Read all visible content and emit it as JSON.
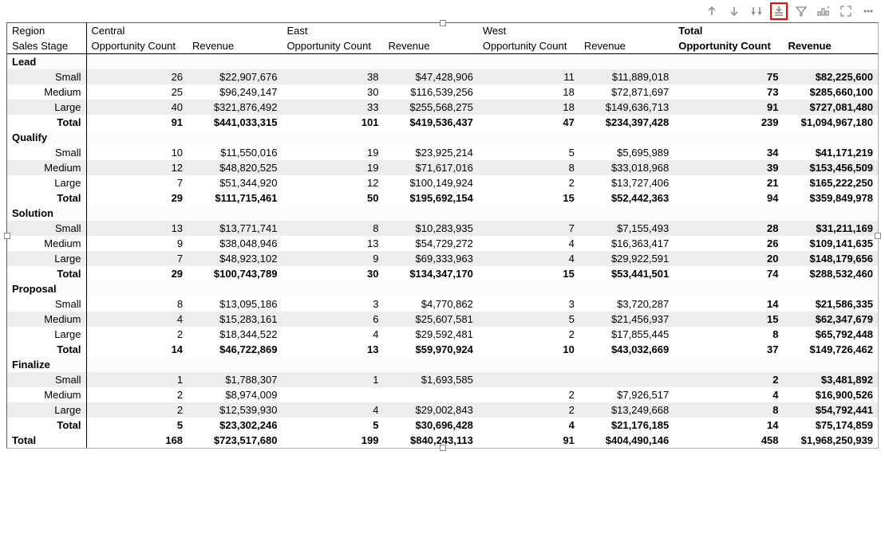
{
  "toolbar": {
    "icons": [
      "arrow-up",
      "arrow-down",
      "drill-toggle",
      "drill-down-level",
      "filter",
      "spotlight",
      "focus-mode",
      "more"
    ]
  },
  "matrix": {
    "row_field1": "Region",
    "row_field2": "Sales Stage",
    "col_groups": [
      "Central",
      "East",
      "West",
      "Total"
    ],
    "measures": [
      "Opportunity Count",
      "Revenue"
    ],
    "stages": [
      {
        "name": "Lead",
        "rows": [
          {
            "label": "Small",
            "zebra": true,
            "Central": {
              "opp": "26",
              "rev": "$22,907,676"
            },
            "East": {
              "opp": "38",
              "rev": "$47,428,906"
            },
            "West": {
              "opp": "11",
              "rev": "$11,889,018"
            },
            "Total": {
              "opp": "75",
              "rev": "$82,225,600"
            }
          },
          {
            "label": "Medium",
            "zebra": false,
            "Central": {
              "opp": "25",
              "rev": "$96,249,147"
            },
            "East": {
              "opp": "30",
              "rev": "$116,539,256"
            },
            "West": {
              "opp": "18",
              "rev": "$72,871,697"
            },
            "Total": {
              "opp": "73",
              "rev": "$285,660,100"
            }
          },
          {
            "label": "Large",
            "zebra": true,
            "Central": {
              "opp": "40",
              "rev": "$321,876,492"
            },
            "East": {
              "opp": "33",
              "rev": "$255,568,275"
            },
            "West": {
              "opp": "18",
              "rev": "$149,636,713"
            },
            "Total": {
              "opp": "91",
              "rev": "$727,081,480"
            }
          }
        ],
        "subtotal": {
          "Central": {
            "opp": "91",
            "rev": "$441,033,315"
          },
          "East": {
            "opp": "101",
            "rev": "$419,536,437"
          },
          "West": {
            "opp": "47",
            "rev": "$234,397,428"
          },
          "Total": {
            "opp": "239",
            "rev": "$1,094,967,180"
          }
        }
      },
      {
        "name": "Qualify",
        "rows": [
          {
            "label": "Small",
            "zebra": false,
            "Central": {
              "opp": "10",
              "rev": "$11,550,016"
            },
            "East": {
              "opp": "19",
              "rev": "$23,925,214"
            },
            "West": {
              "opp": "5",
              "rev": "$5,695,989"
            },
            "Total": {
              "opp": "34",
              "rev": "$41,171,219"
            }
          },
          {
            "label": "Medium",
            "zebra": true,
            "Central": {
              "opp": "12",
              "rev": "$48,820,525"
            },
            "East": {
              "opp": "19",
              "rev": "$71,617,016"
            },
            "West": {
              "opp": "8",
              "rev": "$33,018,968"
            },
            "Total": {
              "opp": "39",
              "rev": "$153,456,509"
            }
          },
          {
            "label": "Large",
            "zebra": false,
            "Central": {
              "opp": "7",
              "rev": "$51,344,920"
            },
            "East": {
              "opp": "12",
              "rev": "$100,149,924"
            },
            "West": {
              "opp": "2",
              "rev": "$13,727,406"
            },
            "Total": {
              "opp": "21",
              "rev": "$165,222,250"
            }
          }
        ],
        "subtotal": {
          "Central": {
            "opp": "29",
            "rev": "$111,715,461"
          },
          "East": {
            "opp": "50",
            "rev": "$195,692,154"
          },
          "West": {
            "opp": "15",
            "rev": "$52,442,363"
          },
          "Total": {
            "opp": "94",
            "rev": "$359,849,978"
          }
        }
      },
      {
        "name": "Solution",
        "rows": [
          {
            "label": "Small",
            "zebra": true,
            "Central": {
              "opp": "13",
              "rev": "$13,771,741"
            },
            "East": {
              "opp": "8",
              "rev": "$10,283,935"
            },
            "West": {
              "opp": "7",
              "rev": "$7,155,493"
            },
            "Total": {
              "opp": "28",
              "rev": "$31,211,169"
            }
          },
          {
            "label": "Medium",
            "zebra": false,
            "Central": {
              "opp": "9",
              "rev": "$38,048,946"
            },
            "East": {
              "opp": "13",
              "rev": "$54,729,272"
            },
            "West": {
              "opp": "4",
              "rev": "$16,363,417"
            },
            "Total": {
              "opp": "26",
              "rev": "$109,141,635"
            }
          },
          {
            "label": "Large",
            "zebra": true,
            "Central": {
              "opp": "7",
              "rev": "$48,923,102"
            },
            "East": {
              "opp": "9",
              "rev": "$69,333,963"
            },
            "West": {
              "opp": "4",
              "rev": "$29,922,591"
            },
            "Total": {
              "opp": "20",
              "rev": "$148,179,656"
            }
          }
        ],
        "subtotal": {
          "Central": {
            "opp": "29",
            "rev": "$100,743,789"
          },
          "East": {
            "opp": "30",
            "rev": "$134,347,170"
          },
          "West": {
            "opp": "15",
            "rev": "$53,441,501"
          },
          "Total": {
            "opp": "74",
            "rev": "$288,532,460"
          }
        }
      },
      {
        "name": "Proposal",
        "rows": [
          {
            "label": "Small",
            "zebra": false,
            "Central": {
              "opp": "8",
              "rev": "$13,095,186"
            },
            "East": {
              "opp": "3",
              "rev": "$4,770,862"
            },
            "West": {
              "opp": "3",
              "rev": "$3,720,287"
            },
            "Total": {
              "opp": "14",
              "rev": "$21,586,335"
            }
          },
          {
            "label": "Medium",
            "zebra": true,
            "Central": {
              "opp": "4",
              "rev": "$15,283,161"
            },
            "East": {
              "opp": "6",
              "rev": "$25,607,581"
            },
            "West": {
              "opp": "5",
              "rev": "$21,456,937"
            },
            "Total": {
              "opp": "15",
              "rev": "$62,347,679"
            }
          },
          {
            "label": "Large",
            "zebra": false,
            "Central": {
              "opp": "2",
              "rev": "$18,344,522"
            },
            "East": {
              "opp": "4",
              "rev": "$29,592,481"
            },
            "West": {
              "opp": "2",
              "rev": "$17,855,445"
            },
            "Total": {
              "opp": "8",
              "rev": "$65,792,448"
            }
          }
        ],
        "subtotal": {
          "Central": {
            "opp": "14",
            "rev": "$46,722,869"
          },
          "East": {
            "opp": "13",
            "rev": "$59,970,924"
          },
          "West": {
            "opp": "10",
            "rev": "$43,032,669"
          },
          "Total": {
            "opp": "37",
            "rev": "$149,726,462"
          }
        }
      },
      {
        "name": "Finalize",
        "rows": [
          {
            "label": "Small",
            "zebra": true,
            "Central": {
              "opp": "1",
              "rev": "$1,788,307"
            },
            "East": {
              "opp": "1",
              "rev": "$1,693,585"
            },
            "West": {
              "opp": "",
              "rev": ""
            },
            "Total": {
              "opp": "2",
              "rev": "$3,481,892"
            }
          },
          {
            "label": "Medium",
            "zebra": false,
            "Central": {
              "opp": "2",
              "rev": "$8,974,009"
            },
            "East": {
              "opp": "",
              "rev": ""
            },
            "West": {
              "opp": "2",
              "rev": "$7,926,517"
            },
            "Total": {
              "opp": "4",
              "rev": "$16,900,526"
            }
          },
          {
            "label": "Large",
            "zebra": true,
            "Central": {
              "opp": "2",
              "rev": "$12,539,930"
            },
            "East": {
              "opp": "4",
              "rev": "$29,002,843"
            },
            "West": {
              "opp": "2",
              "rev": "$13,249,668"
            },
            "Total": {
              "opp": "8",
              "rev": "$54,792,441"
            }
          }
        ],
        "subtotal": {
          "Central": {
            "opp": "5",
            "rev": "$23,302,246"
          },
          "East": {
            "opp": "5",
            "rev": "$30,696,428"
          },
          "West": {
            "opp": "4",
            "rev": "$21,176,185"
          },
          "Total": {
            "opp": "14",
            "rev": "$75,174,859"
          }
        }
      }
    ],
    "grand_total_label": "Total",
    "subtotal_label": "Total",
    "grand": {
      "Central": {
        "opp": "168",
        "rev": "$723,517,680"
      },
      "East": {
        "opp": "199",
        "rev": "$840,243,113"
      },
      "West": {
        "opp": "91",
        "rev": "$404,490,146"
      },
      "Total": {
        "opp": "458",
        "rev": "$1,968,250,939"
      }
    }
  },
  "style": {
    "zebra_color": "#ededed",
    "border_color": "#000000",
    "highlight_color": "#ff0000",
    "icon_color": "#8a8886",
    "font_family": "Segoe UI",
    "font_size_pt": 10
  }
}
